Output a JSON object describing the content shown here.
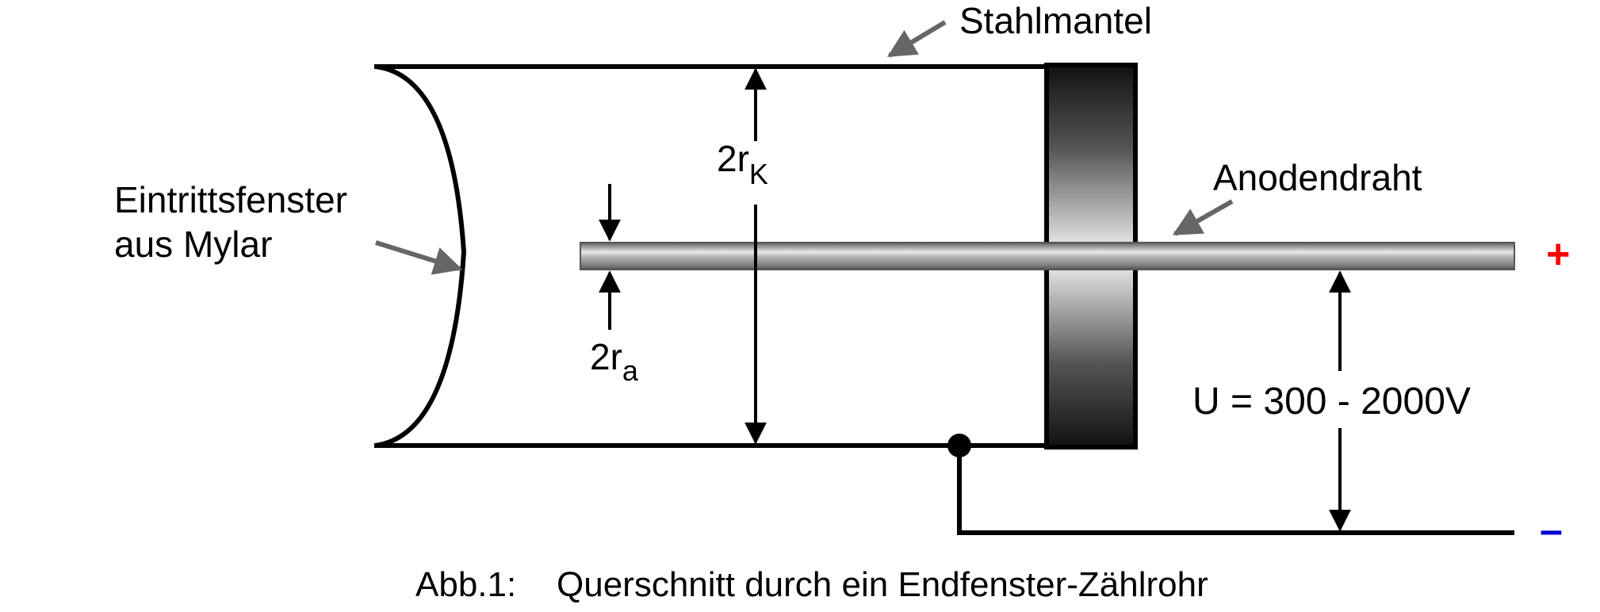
{
  "labels": {
    "steel_jacket": "Stahlmantel",
    "window_line1": "Eintrittsfenster",
    "window_line2": "aus Mylar",
    "anode_wire": "Anodendraht",
    "cathode_dim_base": "2r",
    "cathode_dim_sub": "K",
    "anode_dim_base": "2r",
    "anode_dim_sub": "a",
    "voltage": "U = 300 - 2000V",
    "plus": "+",
    "minus": "–"
  },
  "caption": {
    "number": "Abb.1:",
    "text": "Querschnitt durch ein Endfenster-Zählrohr"
  },
  "colors": {
    "line": "#000000",
    "pointer_arrow": "#666666",
    "plus": "#ff0000",
    "minus": "#0000cc"
  }
}
